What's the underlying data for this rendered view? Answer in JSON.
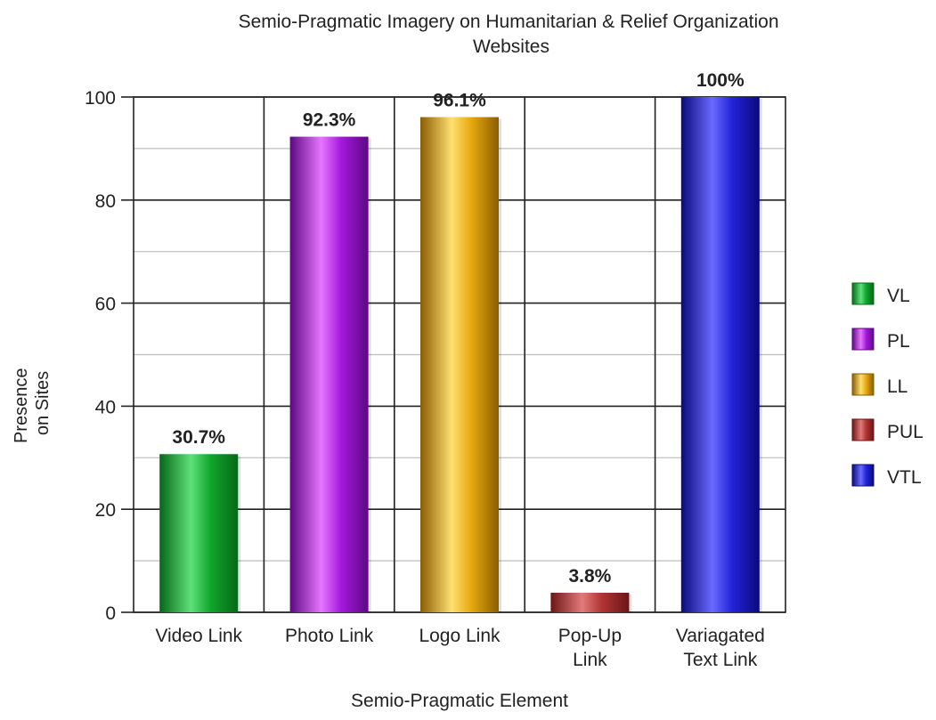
{
  "chart_data": {
    "type": "bar",
    "title": "Semio-Pragmatic Imagery on Humanitarian & Relief Organization Websites",
    "title_lines": [
      "Semio-Pragmatic Imagery on Humanitarian & Relief Organization",
      "Websites"
    ],
    "xlabel": "Semio-Pragmatic Element",
    "ylabel": "Presence on Sites",
    "ylabel_lines": [
      "Presence",
      "on Sites"
    ],
    "ylim": [
      0,
      100
    ],
    "yticks": [
      0,
      20,
      40,
      60,
      80,
      100
    ],
    "grid": true,
    "legend_position": "right",
    "categories": [
      "Video Link",
      "Photo Link",
      "Logo Link",
      "Pop-Up Link",
      "Variagated Text Link"
    ],
    "category_lines": [
      [
        "Video Link"
      ],
      [
        "Photo Link"
      ],
      [
        "Logo Link"
      ],
      [
        "Pop-Up",
        "Link"
      ],
      [
        "Variagated",
        "Text Link"
      ]
    ],
    "values": [
      30.7,
      92.3,
      96.1,
      3.8,
      100
    ],
    "value_labels": [
      "30.7%",
      "92.3%",
      "96.1%",
      "3.8%",
      "100%"
    ],
    "legend": [
      "VL",
      "PL",
      "LL",
      "PUL",
      "VTL"
    ],
    "colors": [
      "#11a52c",
      "#a419dd",
      "#e6a90d",
      "#b03535",
      "#2323d8"
    ],
    "colors_light": [
      "#5fe07a",
      "#e676ff",
      "#ffe070",
      "#e27a7a",
      "#6a6aff"
    ],
    "colors_dark": [
      "#066818",
      "#5e0883",
      "#8a5c02",
      "#6c1515",
      "#0a0a7a"
    ]
  }
}
